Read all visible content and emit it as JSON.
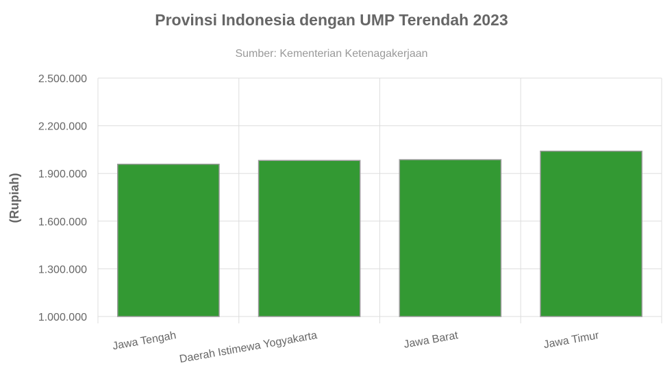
{
  "chart_data": {
    "type": "bar",
    "title": "Provinsi Indonesia dengan UMP Terendah 2023",
    "subtitle": "Sumber: Kementerian Ketenagakerjaan",
    "xlabel": "",
    "ylabel": "(Rupiah)",
    "categories": [
      "Jawa Tengah",
      "Daerah Istimewa Yogyakarta",
      "Jawa Barat",
      "Jawa Timur"
    ],
    "values": [
      1958169,
      1981782,
      1986670,
      2040244
    ],
    "ylim": [
      1000000,
      2500000
    ],
    "yticks": [
      1000000,
      1300000,
      1600000,
      1900000,
      2200000,
      2500000
    ],
    "ytick_labels": [
      "1.000.000",
      "1.300.000",
      "1.600.000",
      "1.900.000",
      "2.200.000",
      "2.500.000"
    ],
    "grid": true,
    "legend": "none",
    "bar_color": "#339933",
    "bar_border_color": "#999999"
  }
}
